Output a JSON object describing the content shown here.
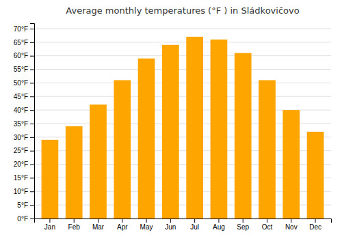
{
  "chart_data": {
    "type": "bar",
    "title": "Average monthly temperatures (°F ) in Sládkovičovo",
    "categories": [
      "Jan",
      "Feb",
      "Mar",
      "Apr",
      "May",
      "Jun",
      "Jul",
      "Aug",
      "Sep",
      "Oct",
      "Nov",
      "Dec"
    ],
    "values": [
      29,
      34,
      42,
      51,
      59,
      64,
      67,
      66,
      61,
      51,
      40,
      32
    ],
    "color": "#FFA500",
    "ylim": [
      0,
      72
    ],
    "yticks": [
      {
        "value": 0,
        "label": "0°F"
      },
      {
        "value": 5,
        "label": "5°F"
      },
      {
        "value": 10,
        "label": "10°F"
      },
      {
        "value": 15,
        "label": "15°F"
      },
      {
        "value": 20,
        "label": "20°F"
      },
      {
        "value": 25,
        "label": "25°F"
      },
      {
        "value": 30,
        "label": "30°F"
      },
      {
        "value": 35,
        "label": "35°F"
      },
      {
        "value": 40,
        "label": "40°F"
      },
      {
        "value": 45,
        "label": "45°F"
      },
      {
        "value": 50,
        "label": "50°F"
      },
      {
        "value": 55,
        "label": "55°F"
      },
      {
        "value": 60,
        "label": "60°F"
      },
      {
        "value": 65,
        "label": "65°F"
      },
      {
        "value": 70,
        "label": "70°F"
      }
    ],
    "grid": true
  }
}
